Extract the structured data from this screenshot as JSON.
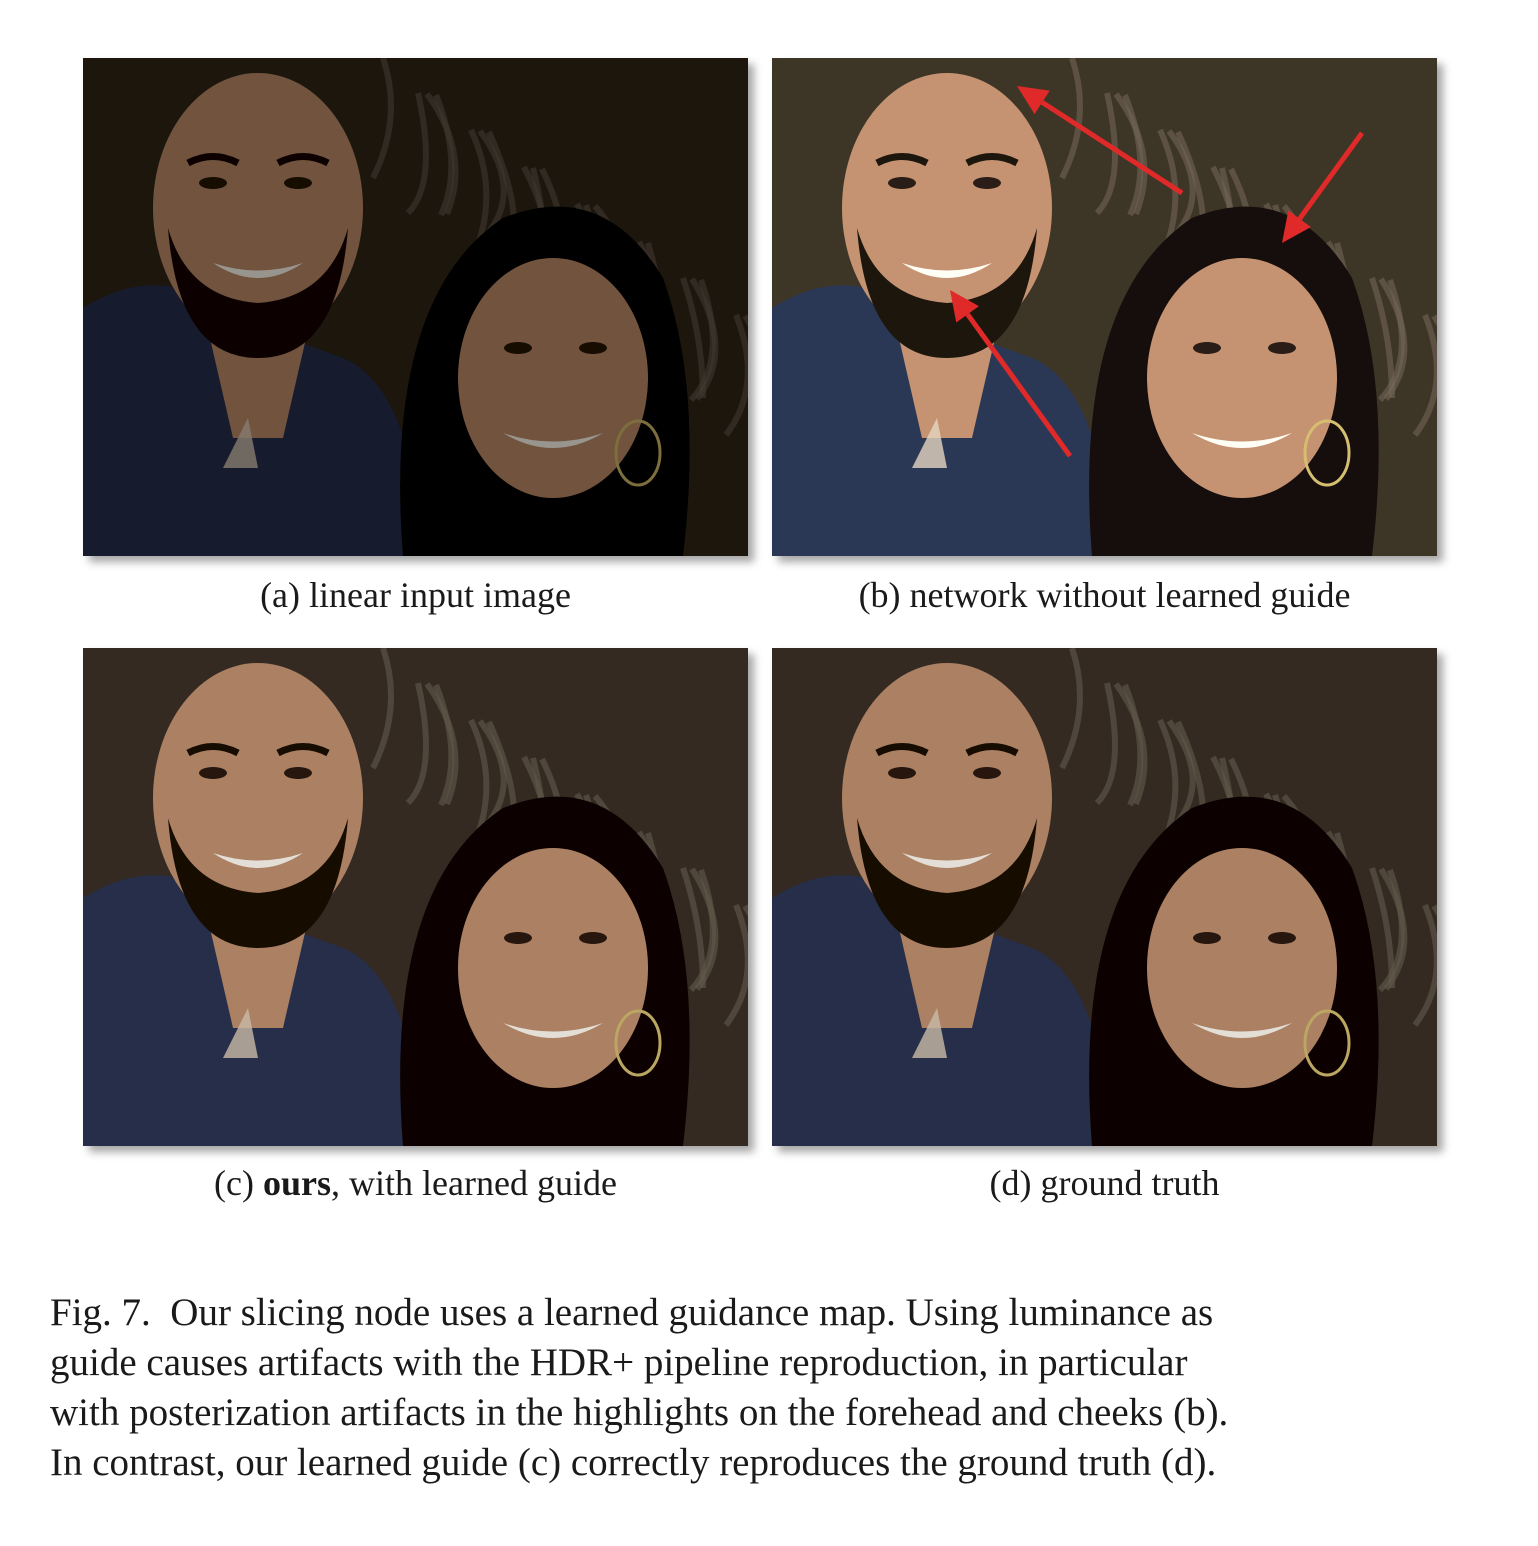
{
  "panels": [
    {
      "id": "a",
      "caption": "(a) linear input image",
      "exposure": "dark",
      "annotated": false
    },
    {
      "id": "b",
      "caption": "(b) network without learned guide",
      "exposure": "bright",
      "annotated": true
    },
    {
      "id": "c",
      "caption_prefix": "(c) ",
      "caption_bold": "ours",
      "caption_suffix": ", with learned guide",
      "exposure": "normal",
      "annotated": false
    },
    {
      "id": "d",
      "caption": "(d) ground truth",
      "exposure": "normal",
      "annotated": false
    }
  ],
  "figure_caption": {
    "label": "Fig. 7.",
    "lines": [
      "Our slicing node uses a learned guidance map. Using luminance as",
      "guide causes artifacts with the HDR+ pipeline reproduction, in particular",
      "with posterization artifacts in the highlights on the forehead and cheeks (b).",
      "In contrast, our learned guide (c) correctly reproduces the ground truth (d)."
    ]
  },
  "colors": {
    "arrow": "#e02a2a",
    "background_foliage": "#3a3228",
    "shirt": "#2b3550",
    "skin": "#b98a6b",
    "hair": "#120d0a"
  }
}
